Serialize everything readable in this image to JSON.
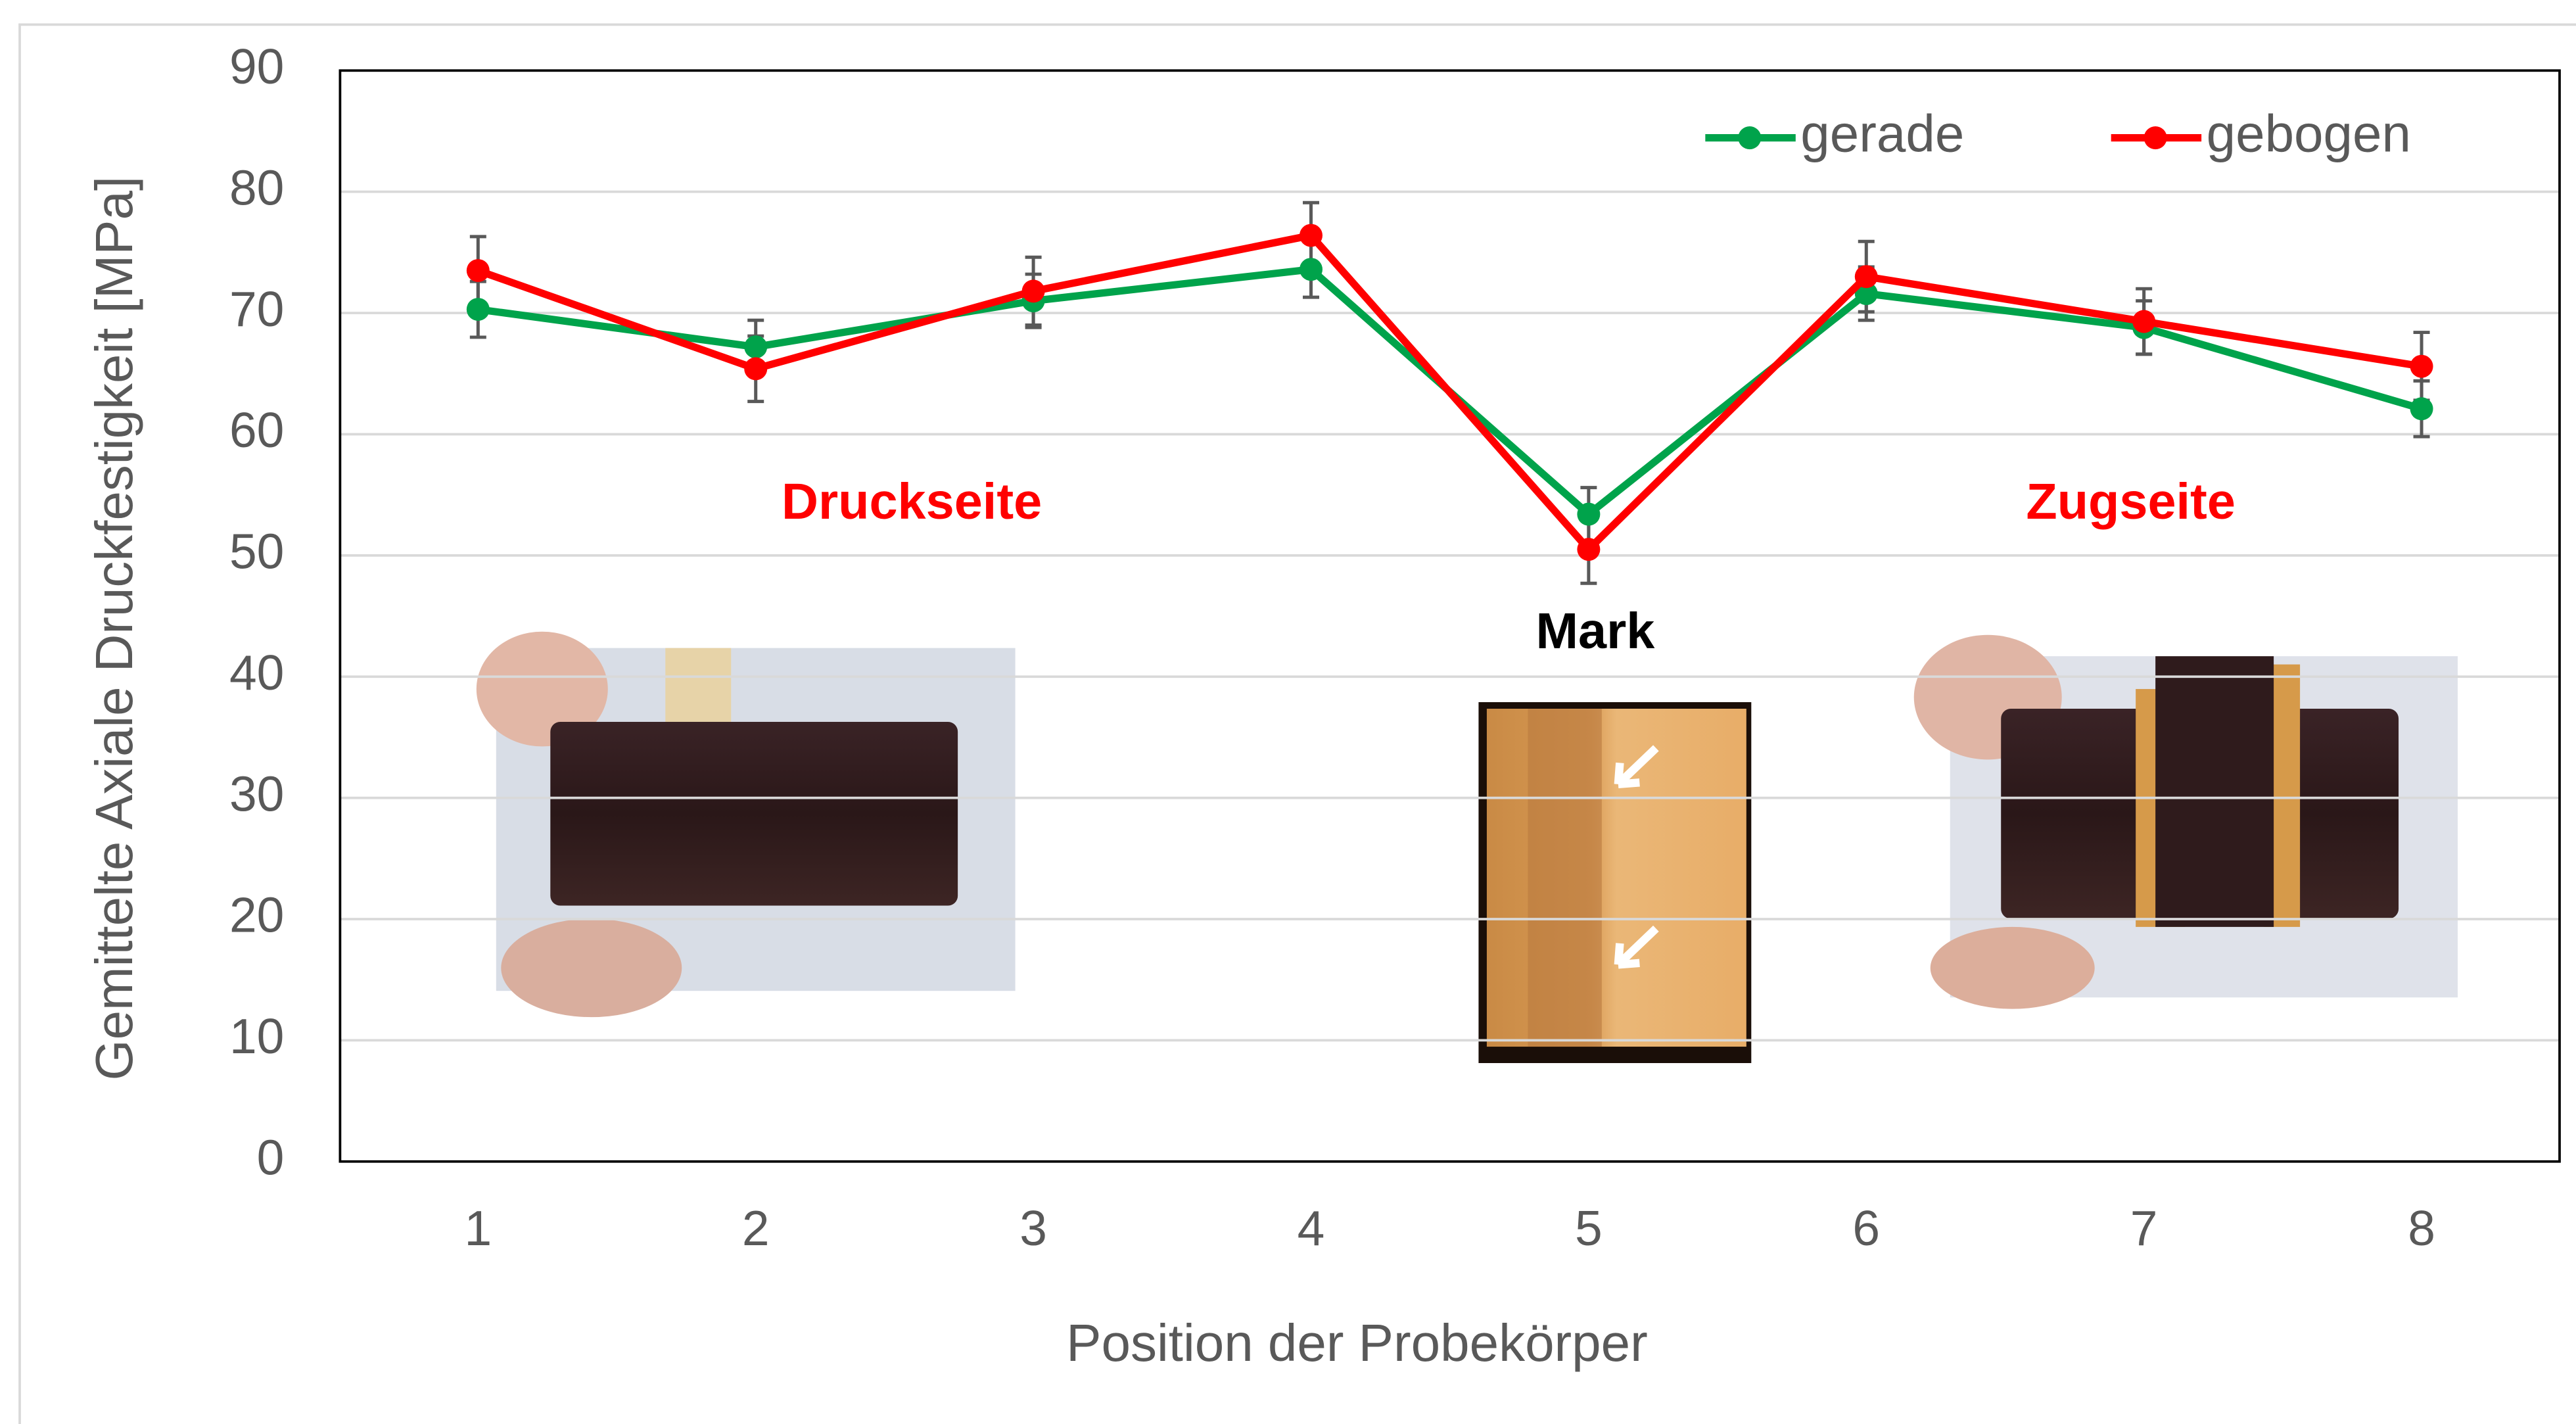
{
  "chart_data": {
    "type": "line",
    "y_label": "Gemittelte Axiale Druckfestigkeit [MPa]",
    "x_label": "Position der Probekörper",
    "categories": [
      "1",
      "2",
      "3",
      "4",
      "5",
      "6",
      "7",
      "8"
    ],
    "series": [
      {
        "name": "gerade",
        "color": "#00a34b",
        "values": [
          70.3,
          67.2,
          71.0,
          73.6,
          53.4,
          71.6,
          68.8,
          62.1
        ],
        "errors": [
          2.3,
          2.2,
          2.2,
          2.3,
          2.2,
          2.2,
          2.2,
          2.3
        ]
      },
      {
        "name": "gebogen",
        "color": "#ff0000",
        "values": [
          73.5,
          65.4,
          71.8,
          76.4,
          50.5,
          73.0,
          69.3,
          65.6
        ],
        "errors": [
          2.8,
          2.7,
          2.8,
          2.7,
          2.8,
          2.9,
          2.7,
          2.8
        ]
      }
    ],
    "ylim": [
      0,
      90
    ],
    "yticks": [
      0,
      10,
      20,
      30,
      40,
      50,
      60,
      70,
      80,
      90
    ],
    "grid": true,
    "legend": "top-right",
    "annotations": [
      {
        "text": "Druckseite",
        "color": "#ff0000"
      },
      {
        "text": "Mark",
        "color": "#000000"
      },
      {
        "text": "Zugseite",
        "color": "#ff0000"
      }
    ]
  }
}
